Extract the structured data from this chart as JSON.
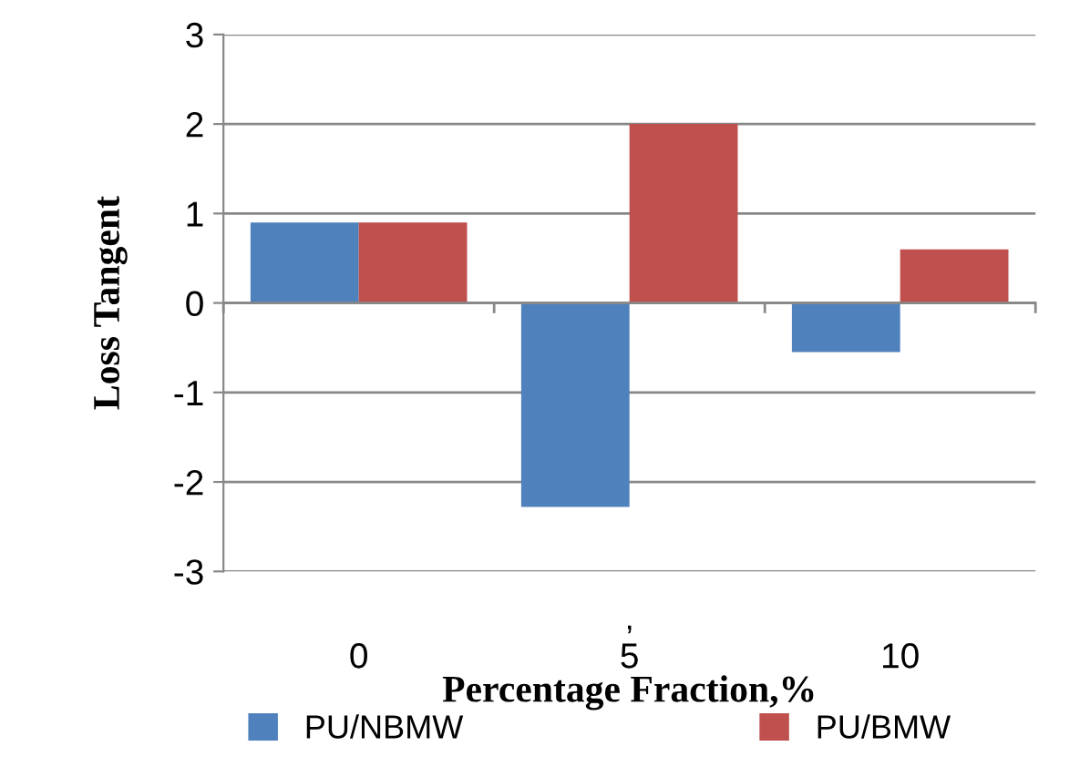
{
  "chart_data": {
    "type": "bar",
    "xlabel": "Percentage Fraction,%",
    "ylabel": "Loss Tangent",
    "categories": [
      "0",
      "5",
      "10"
    ],
    "series": [
      {
        "name": "PU/NBMW",
        "color": "#4f81bd",
        "values": [
          0.9,
          -2.28,
          -0.55
        ]
      },
      {
        "name": "PU/BMW",
        "color": "#c0504d",
        "values": [
          0.9,
          2.0,
          0.6
        ]
      }
    ],
    "ylim": [
      -3,
      3
    ],
    "yticks": [
      -3,
      -2,
      -1,
      0,
      1,
      2,
      3
    ],
    "grid": "y",
    "legend": "bottom",
    "annotations": [
      ","
    ]
  }
}
